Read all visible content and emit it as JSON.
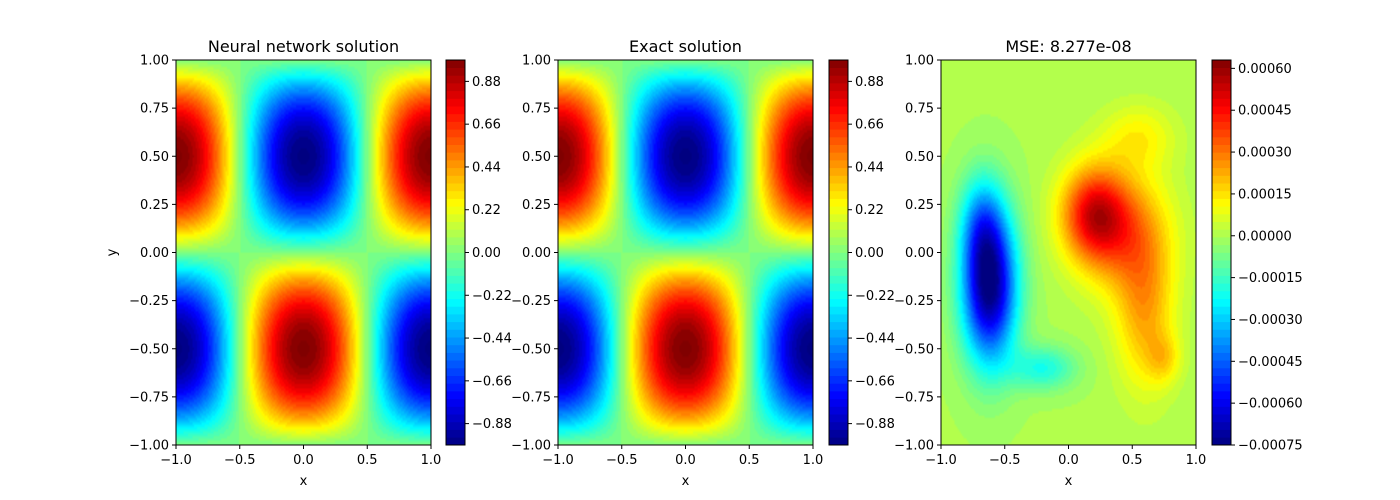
{
  "chart_data": [
    {
      "type": "heatmap",
      "title": "Neural network solution",
      "xlabel": "x",
      "ylabel": "y",
      "xlim": [
        -1.0,
        1.0
      ],
      "ylim": [
        -1.0,
        1.0
      ],
      "xticks": [
        "−1.0",
        "−0.5",
        "0.0",
        "0.5",
        "1.0"
      ],
      "yticks": [
        "−1.00",
        "−0.75",
        "−0.50",
        "−0.25",
        "0.00",
        "0.25",
        "0.50",
        "0.75",
        "1.00"
      ],
      "field": "-cos(pi*x)*sin(pi*y)",
      "colormap": "jet",
      "colorbar": {
        "range": [
          -0.99,
          0.99
        ],
        "ticks": [
          "−0.88",
          "−0.66",
          "−0.44",
          "−0.22",
          "0.00",
          "0.22",
          "0.44",
          "0.66",
          "0.88"
        ],
        "tick_values": [
          -0.88,
          -0.66,
          -0.44,
          -0.22,
          0.0,
          0.22,
          0.44,
          0.66,
          0.88
        ]
      }
    },
    {
      "type": "heatmap",
      "title": "Exact solution",
      "xlabel": "x",
      "ylabel": "",
      "xlim": [
        -1.0,
        1.0
      ],
      "ylim": [
        -1.0,
        1.0
      ],
      "xticks": [
        "−1.0",
        "−0.5",
        "0.0",
        "0.5",
        "1.0"
      ],
      "yticks": [
        "−1.00",
        "−0.75",
        "−0.50",
        "−0.25",
        "0.00",
        "0.25",
        "0.50",
        "0.75",
        "1.00"
      ],
      "field": "-cos(pi*x)*sin(pi*y)",
      "colormap": "jet",
      "colorbar": {
        "range": [
          -0.99,
          0.99
        ],
        "ticks": [
          "−0.88",
          "−0.66",
          "−0.44",
          "−0.22",
          "0.00",
          "0.22",
          "0.44",
          "0.66",
          "0.88"
        ],
        "tick_values": [
          -0.88,
          -0.66,
          -0.44,
          -0.22,
          0.0,
          0.22,
          0.44,
          0.66,
          0.88
        ]
      }
    },
    {
      "type": "heatmap",
      "title": "MSE:  8.277e-08",
      "xlabel": "x",
      "ylabel": "",
      "xlim": [
        -1.0,
        1.0
      ],
      "ylim": [
        -1.0,
        1.0
      ],
      "xticks": [
        "−1.0",
        "−0.5",
        "0.0",
        "0.5",
        "1.0"
      ],
      "yticks": [
        "−1.00",
        "−0.75",
        "−0.50",
        "−0.25",
        "0.00",
        "0.25",
        "0.50",
        "0.75",
        "1.00"
      ],
      "field": "error",
      "colormap": "jet",
      "colorbar": {
        "range": [
          -0.00075,
          0.00063
        ],
        "ticks": [
          "−0.00075",
          "−0.00060",
          "−0.00045",
          "−0.00030",
          "−0.00015",
          "0.00000",
          "0.00015",
          "0.00030",
          "0.00045",
          "0.00060"
        ],
        "tick_values": [
          -0.00075,
          -0.0006,
          -0.00045,
          -0.0003,
          -0.00015,
          0.0,
          0.00015,
          0.0003,
          0.00045,
          0.0006
        ]
      }
    }
  ]
}
